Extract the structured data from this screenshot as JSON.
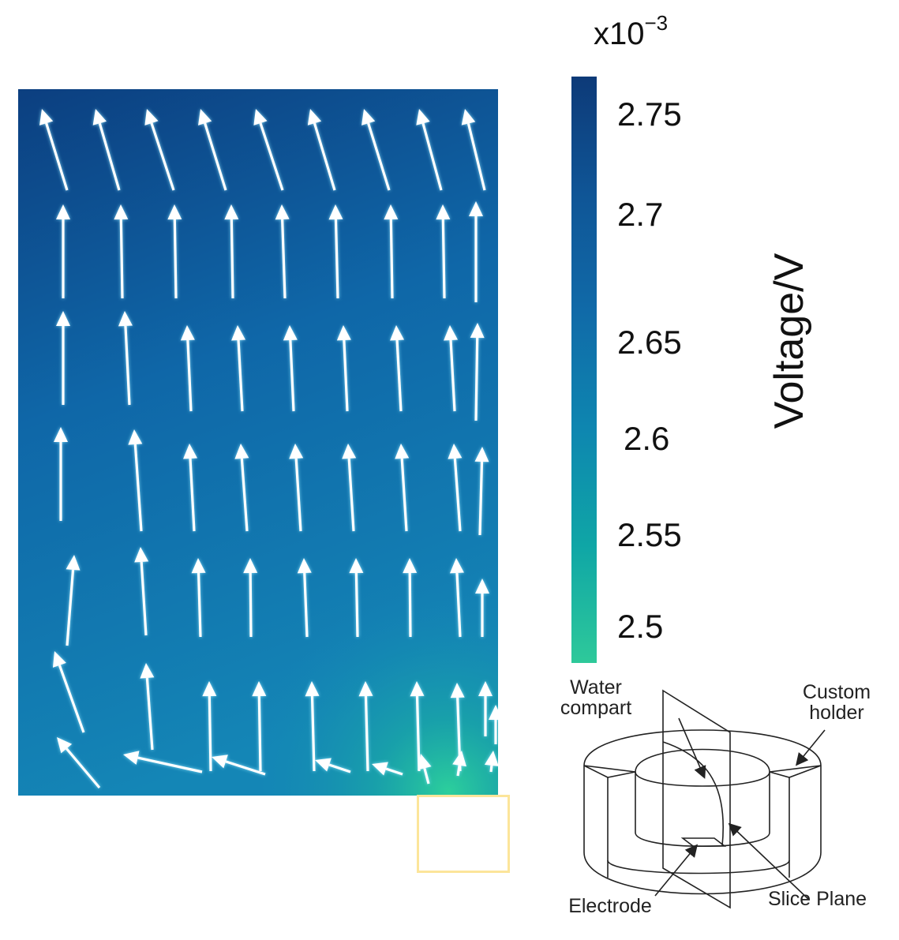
{
  "colorbar": {
    "exponent_base": "x10",
    "exponent_power": "−3",
    "label": "Voltage/V",
    "ticks": [
      "2.75",
      "2.7",
      "2.65",
      "2.6",
      "2.55",
      "2.5"
    ],
    "range_top": 2.77,
    "range_bottom": 2.48,
    "colors": {
      "top": "#0d3a78",
      "bottom": "#2ec99a"
    }
  },
  "schematic": {
    "labels": {
      "water_line1": "Water",
      "water_line2": "compart",
      "custom_line1": "Custom",
      "custom_line2": "holder",
      "electrode": "Electrode",
      "slice_plane": "Slice Plane"
    }
  },
  "colors": {
    "arrow": "#ffffff",
    "arrow_glow": "#8fe6ff",
    "highlight_box": "#fce59a"
  }
}
